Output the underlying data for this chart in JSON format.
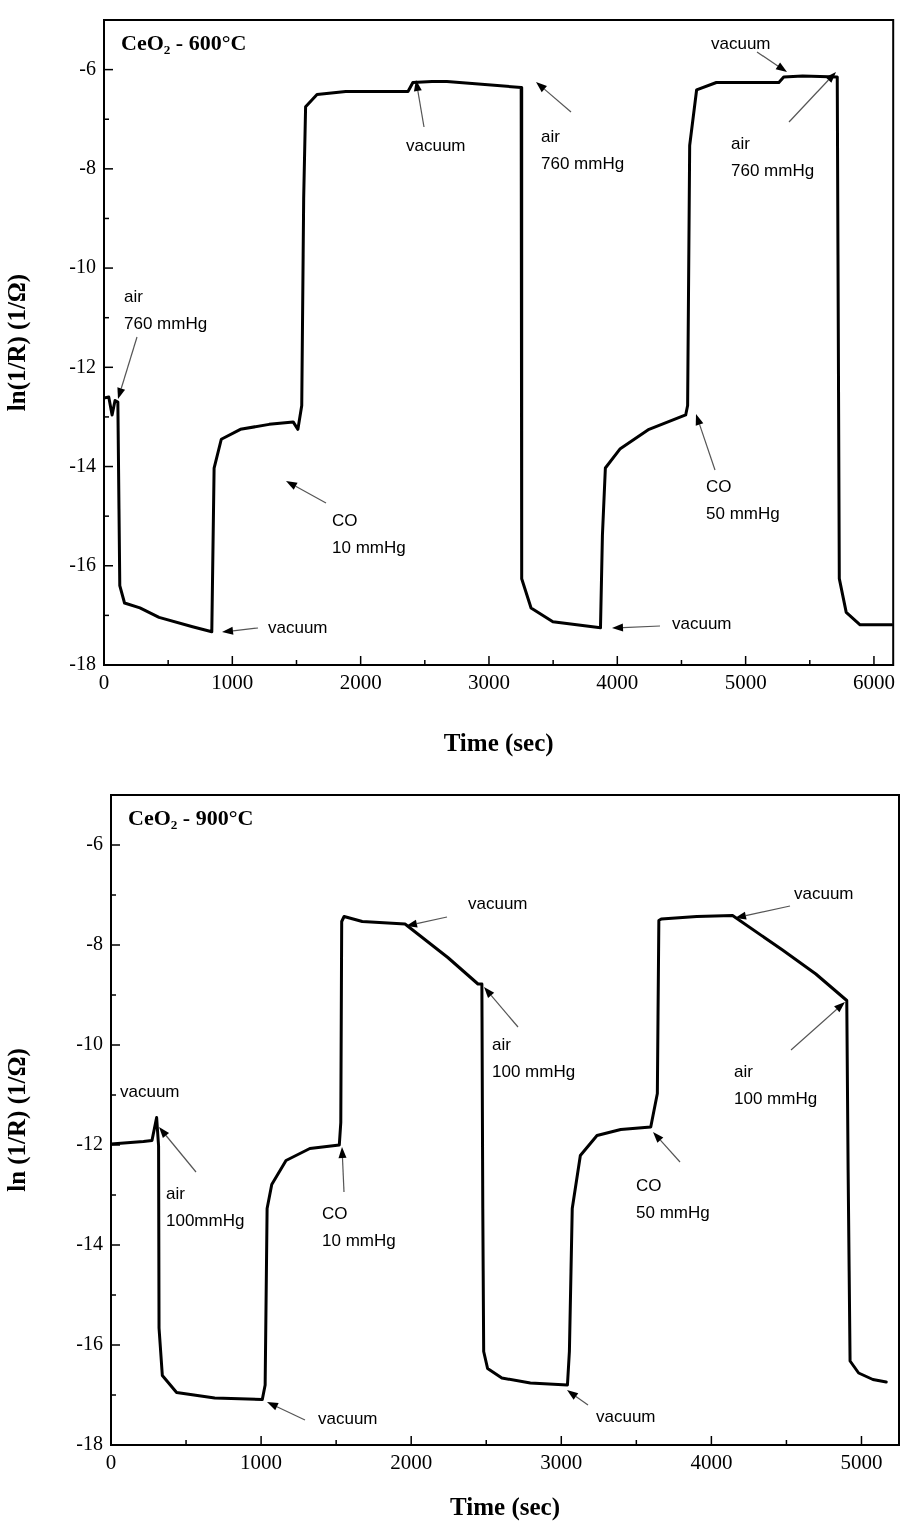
{
  "chart_data": [
    {
      "type": "line",
      "title": "CeO₂ - 600°C",
      "xlabel": "Time (sec)",
      "ylabel": "ln(1/R) (1/Ω)",
      "xlim": [
        0,
        6150
      ],
      "ylim": [
        -18,
        -5
      ],
      "xticks": [
        0,
        {
          "value": 500,
          "label": null
        },
        1000,
        {
          "value": 1500,
          "label": null
        },
        2000,
        {
          "value": 2500,
          "label": null
        },
        3000,
        {
          "value": 3500,
          "label": null
        },
        4000,
        {
          "value": 4500,
          "label": null
        },
        5000,
        {
          "value": 5500,
          "label": null
        },
        6000
      ],
      "yticks": [
        -18,
        {
          "value": -17,
          "label": null
        },
        -16,
        {
          "value": -15,
          "label": null
        },
        -14,
        {
          "value": -13,
          "label": null
        },
        -12,
        {
          "value": -11,
          "label": null
        },
        -10,
        {
          "value": -9,
          "label": null
        },
        -8,
        {
          "value": -7,
          "label": null
        },
        -6
      ],
      "grid": false,
      "legend": false,
      "marker": "none",
      "line_style": "solid",
      "x": [
        0,
        37,
        63,
        86,
        108,
        123,
        160,
        280,
        429,
        690,
        840,
        858,
        914,
        1063,
        1287,
        1474,
        1511,
        1541,
        1556,
        1571,
        1660,
        1884,
        2369,
        2407,
        2556,
        2672,
        3251,
        3255,
        3328,
        3498,
        3869,
        3884,
        3907,
        4023,
        4247,
        4533,
        4548,
        4564,
        4618,
        4772,
        5259,
        5297,
        5444,
        5714,
        5730,
        5784,
        5892,
        6140
      ],
      "series": [
        {
          "color": "#000000",
          "values": [
            -12.62,
            -12.6,
            -12.96,
            -12.67,
            -12.7,
            -16.4,
            -16.75,
            -16.85,
            -17.04,
            -17.23,
            -17.33,
            -14.03,
            -13.45,
            -13.25,
            -13.15,
            -13.1,
            -13.25,
            -12.77,
            -8.6,
            -6.75,
            -6.5,
            -6.44,
            -6.44,
            -6.26,
            -6.24,
            -6.24,
            -6.36,
            -16.26,
            -16.85,
            -17.13,
            -17.25,
            -15.39,
            -14.03,
            -13.64,
            -13.25,
            -12.96,
            -12.77,
            -7.53,
            -6.41,
            -6.26,
            -6.26,
            -6.15,
            -6.13,
            -6.15,
            -16.26,
            -16.94,
            -17.19,
            -17.19
          ]
        }
      ],
      "annotations": [
        "air\n760 mmHg",
        "vacuum",
        "CO\n10 mmHg",
        "vacuum",
        "air\n760 mmHg",
        "vacuum",
        "CO\n50 mmHg",
        "vacuum",
        "air\n760 mmHg"
      ]
    },
    {
      "type": "line",
      "title": "CeO₂ - 900°C",
      "xlabel": "Time (sec)",
      "ylabel": "ln (1/R) (1/Ω)",
      "xlim": [
        0,
        5250
      ],
      "ylim": [
        -18,
        -5
      ],
      "xticks": [
        0,
        {
          "value": 500,
          "label": null
        },
        1000,
        {
          "value": 1500,
          "label": null
        },
        2000,
        {
          "value": 2500,
          "label": null
        },
        3000,
        {
          "value": 3500,
          "label": null
        },
        4000,
        {
          "value": 4500,
          "label": null
        },
        5000
      ],
      "yticks": [
        -18,
        {
          "value": -17,
          "label": null
        },
        -16,
        {
          "value": -15,
          "label": null
        },
        -14,
        {
          "value": -13,
          "label": null
        },
        -12,
        {
          "value": -11,
          "label": null
        },
        -10,
        {
          "value": -9,
          "label": null
        },
        -8,
        {
          "value": -7,
          "label": null
        },
        -6
      ],
      "grid": false,
      "legend": false,
      "marker": "none",
      "line_style": "solid",
      "x": [
        0,
        216,
        273,
        304,
        317,
        320,
        342,
        437,
        691,
        1008,
        1027,
        1040,
        1071,
        1166,
        1325,
        1521,
        1531,
        1537,
        1553,
        1674,
        1959,
        2244,
        2445,
        2471,
        2477,
        2483,
        2509,
        2604,
        2794,
        3041,
        3054,
        3073,
        3127,
        3238,
        3396,
        3596,
        3640,
        3650,
        3666,
        3903,
        4141,
        4474,
        4696,
        4902,
        4911,
        4924,
        4981,
        5076,
        5165
      ],
      "series": [
        {
          "color": "#000000",
          "values": [
            -11.98,
            -11.93,
            -11.91,
            -11.45,
            -12.02,
            -15.66,
            -16.61,
            -16.95,
            -17.06,
            -17.09,
            -16.8,
            -13.27,
            -12.79,
            -12.31,
            -12.07,
            -12.0,
            -11.55,
            -7.53,
            -7.43,
            -7.53,
            -7.58,
            -8.25,
            -8.78,
            -8.78,
            -13.27,
            -16.13,
            -16.47,
            -16.66,
            -16.76,
            -16.8,
            -16.13,
            -13.27,
            -12.21,
            -11.81,
            -11.69,
            -11.64,
            -10.97,
            -7.51,
            -7.48,
            -7.43,
            -7.41,
            -8.1,
            -8.58,
            -9.11,
            -12.5,
            -16.32,
            -16.56,
            -16.69,
            -16.74
          ]
        }
      ],
      "annotations": [
        "vacuum",
        "air\n100mmHg",
        "vacuum",
        "CO\n10 mmHg",
        "vacuum",
        "air\n100 mmHg",
        "vacuum",
        "CO\n50 mmHg",
        "vacuum",
        "air\n100 mmHg"
      ]
    }
  ]
}
